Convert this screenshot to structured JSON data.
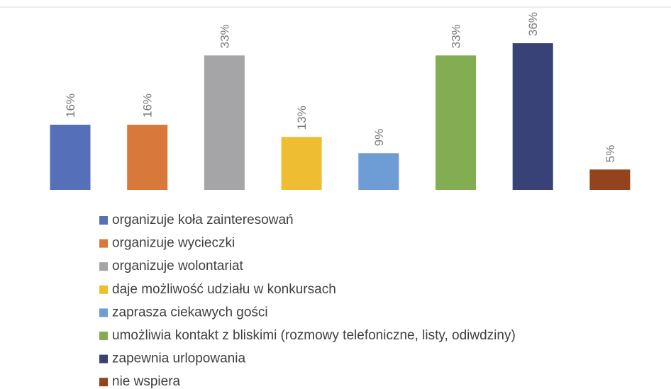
{
  "chart_data": {
    "type": "bar",
    "series": [
      {
        "name": "organizuje koła zainteresowań",
        "color": "#5570b8",
        "values": [
          16
        ],
        "value_labels": [
          "16%"
        ]
      },
      {
        "name": "organizuje wycieczki",
        "color": "#d8783a",
        "values": [
          16
        ],
        "value_labels": [
          "16%"
        ]
      },
      {
        "name": "organizuje wolontariat",
        "color": "#a5a5a8",
        "values": [
          33
        ],
        "value_labels": [
          "33%"
        ]
      },
      {
        "name": "daje możliwość udziału w konkursach",
        "color": "#efbd31",
        "values": [
          13
        ],
        "value_labels": [
          "13%"
        ]
      },
      {
        "name": "zaprasza ciekawych gości",
        "color": "#6e9cd5",
        "values": [
          9
        ],
        "value_labels": [
          "9%"
        ]
      },
      {
        "name": "umożliwia kontakt z bliskimi (rozmowy telefoniczne, listy, odiwdziny)",
        "color": "#82ad53",
        "values": [
          33
        ],
        "value_labels": [
          "33%"
        ]
      },
      {
        "name": "zapewnia urlopowania",
        "color": "#384276",
        "values": [
          36
        ],
        "value_labels": [
          "36%"
        ]
      },
      {
        "name": "nie wspiera",
        "color": "#93441f",
        "values": [
          5
        ],
        "value_labels": [
          "5%"
        ]
      }
    ]
  }
}
